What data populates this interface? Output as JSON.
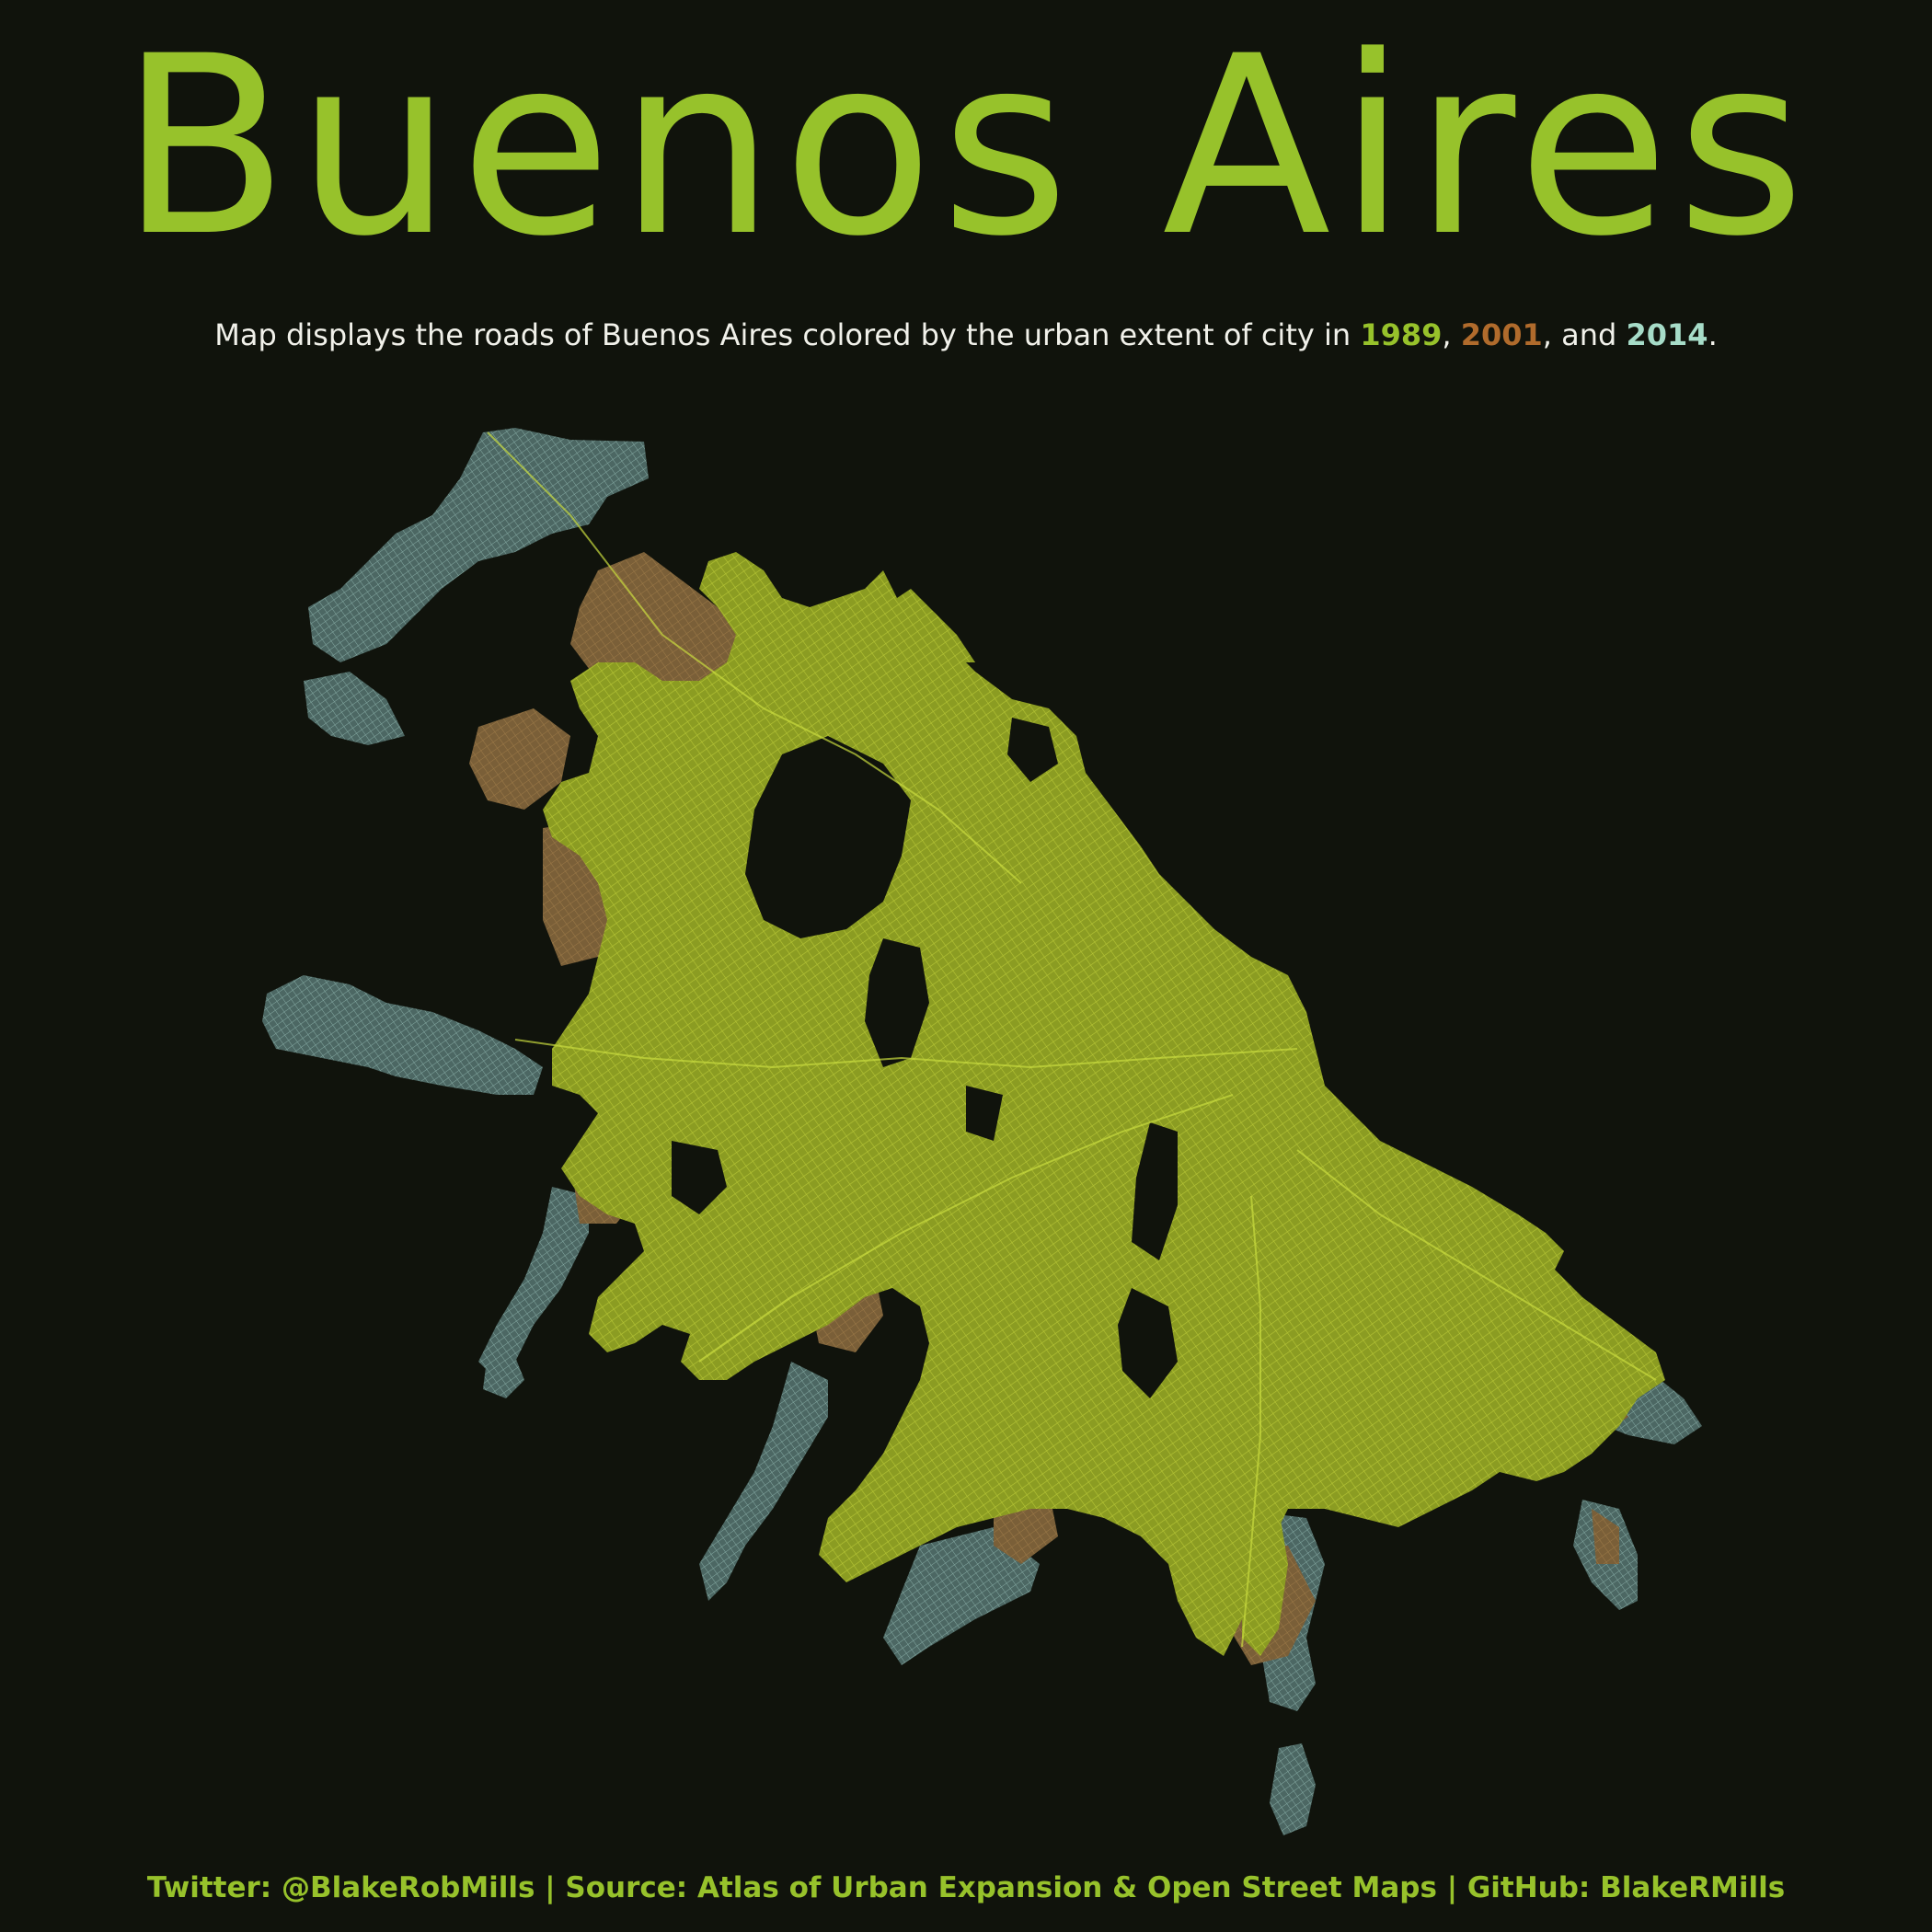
{
  "title": "Buenos Aires",
  "subtitle": {
    "prefix": "Map displays the roads of Buenos Aires colored by the urban extent of city in ",
    "year1": "1989",
    "sep1": ", ",
    "year2": "2001",
    "sep2": ", and ",
    "year3": "2014",
    "suffix": "."
  },
  "legend_colors": {
    "1989": "#97c22b",
    "2001": "#b06b2c",
    "2014": "#a6dcc8"
  },
  "map_colors": {
    "extent_1989": "#a1b42e",
    "extent_2001": "#8a7040",
    "extent_2014": "#6f948d",
    "background": "#10130c"
  },
  "footer": "Twitter: @BlakeRobMills | Source: Atlas of Urban Expansion & Open Street Maps | GitHub: BlakeRMills"
}
